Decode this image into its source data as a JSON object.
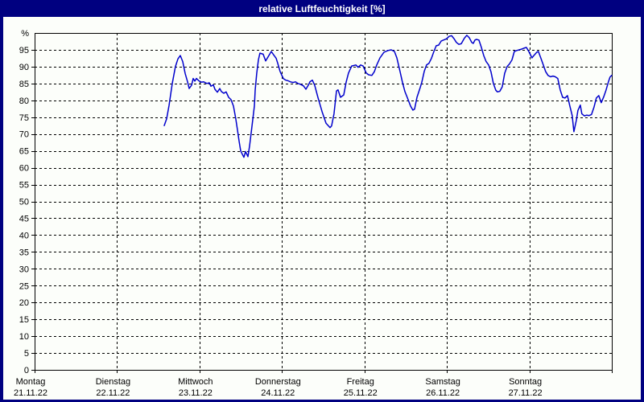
{
  "window": {
    "title": "relative Luftfeuchtigkeit [%]"
  },
  "colors": {
    "frame": "#000080",
    "titlebar_bg": "#000080",
    "title_text": "#ffffff",
    "panel_bg": "#fcfefa",
    "plot_border": "#000000",
    "grid": "#000000",
    "axis_text": "#000000",
    "line": "#0000cc"
  },
  "chart_data": {
    "type": "line",
    "title": "relative Luftfeuchtigkeit [%]",
    "ylabel": "%",
    "ytop_label": "%",
    "ylim": [
      0,
      100
    ],
    "yticks": [
      0,
      5,
      10,
      15,
      20,
      25,
      30,
      35,
      40,
      45,
      50,
      55,
      60,
      65,
      70,
      75,
      80,
      85,
      90,
      95
    ],
    "grid": "dashed, horizontal every 5 units, vertical every day",
    "legend_position": "none",
    "x_axis": {
      "unit": "days_since_monday_00h",
      "range": [
        0,
        7
      ],
      "days": [
        {
          "name": "Montag",
          "date": "21.11.22"
        },
        {
          "name": "Dienstag",
          "date": "22.11.22"
        },
        {
          "name": "Mittwoch",
          "date": "23.11.22"
        },
        {
          "name": "Donnerstag",
          "date": "24.11.22"
        },
        {
          "name": "Freitag",
          "date": "25.11.22"
        },
        {
          "name": "Samstag",
          "date": "26.11.22"
        },
        {
          "name": "Sonntag",
          "date": "27.11.22"
        }
      ]
    },
    "series": [
      {
        "name": "relative Luftfeuchtigkeit",
        "color": "#0000cc",
        "points": [
          [
            1.572,
            72.5
          ],
          [
            1.601,
            74.5
          ],
          [
            1.63,
            78.5
          ],
          [
            1.669,
            85.0
          ],
          [
            1.708,
            90.0
          ],
          [
            1.738,
            92.3
          ],
          [
            1.767,
            93.3
          ],
          [
            1.796,
            91.5
          ],
          [
            1.826,
            88.0
          ],
          [
            1.855,
            85.5
          ],
          [
            1.874,
            83.5
          ],
          [
            1.904,
            84.5
          ],
          [
            1.923,
            86.5
          ],
          [
            1.943,
            85.7
          ],
          [
            1.962,
            86.5
          ],
          [
            1.992,
            85.8
          ],
          [
            2.021,
            85.4
          ],
          [
            2.05,
            85.5
          ],
          [
            2.089,
            85.0
          ],
          [
            2.119,
            85.2
          ],
          [
            2.138,
            84.2
          ],
          [
            2.167,
            84.6
          ],
          [
            2.187,
            83.3
          ],
          [
            2.216,
            82.4
          ],
          [
            2.245,
            83.5
          ],
          [
            2.265,
            82.6
          ],
          [
            2.294,
            82.1
          ],
          [
            2.323,
            82.5
          ],
          [
            2.353,
            80.9
          ],
          [
            2.382,
            80.2
          ],
          [
            2.411,
            78.3
          ],
          [
            2.44,
            74.5
          ],
          [
            2.46,
            71.2
          ],
          [
            2.48,
            67.9
          ],
          [
            2.499,
            65.0
          ],
          [
            2.519,
            64.0
          ],
          [
            2.538,
            63.1
          ],
          [
            2.558,
            64.8
          ],
          [
            2.577,
            63.8
          ],
          [
            2.587,
            63.3
          ],
          [
            2.607,
            66.4
          ],
          [
            2.626,
            70.3
          ],
          [
            2.646,
            74.3
          ],
          [
            2.665,
            78.3
          ],
          [
            2.675,
            83.0
          ],
          [
            2.694,
            88.0
          ],
          [
            2.714,
            92.0
          ],
          [
            2.733,
            94.0
          ],
          [
            2.772,
            93.7
          ],
          [
            2.802,
            91.7
          ],
          [
            2.831,
            92.9
          ],
          [
            2.87,
            94.5
          ],
          [
            2.899,
            93.5
          ],
          [
            2.929,
            92.5
          ],
          [
            2.948,
            91.0
          ],
          [
            2.977,
            88.6
          ],
          [
            3.016,
            86.5
          ],
          [
            3.046,
            86.0
          ],
          [
            3.075,
            85.8
          ],
          [
            3.104,
            85.5
          ],
          [
            3.134,
            85.3
          ],
          [
            3.163,
            85.5
          ],
          [
            3.192,
            85.0
          ],
          [
            3.221,
            84.8
          ],
          [
            3.261,
            84.3
          ],
          [
            3.29,
            83.3
          ],
          [
            3.319,
            84.5
          ],
          [
            3.339,
            85.5
          ],
          [
            3.368,
            86.0
          ],
          [
            3.397,
            84.5
          ],
          [
            3.436,
            80.9
          ],
          [
            3.485,
            76.7
          ],
          [
            3.534,
            73.2
          ],
          [
            3.583,
            71.9
          ],
          [
            3.602,
            72.4
          ],
          [
            3.631,
            76.0
          ],
          [
            3.661,
            82.8
          ],
          [
            3.68,
            83.1
          ],
          [
            3.71,
            80.9
          ],
          [
            3.749,
            81.6
          ],
          [
            3.778,
            85.4
          ],
          [
            3.807,
            88.1
          ],
          [
            3.846,
            90.2
          ],
          [
            3.895,
            90.5
          ],
          [
            3.924,
            89.8
          ],
          [
            3.954,
            90.5
          ],
          [
            3.983,
            90.2
          ],
          [
            4.022,
            88.1
          ],
          [
            4.051,
            87.6
          ],
          [
            4.09,
            87.4
          ],
          [
            4.12,
            88.5
          ],
          [
            4.149,
            90.5
          ],
          [
            4.188,
            92.6
          ],
          [
            4.237,
            94.3
          ],
          [
            4.286,
            94.8
          ],
          [
            4.325,
            95.0
          ],
          [
            4.364,
            94.5
          ],
          [
            4.393,
            92.6
          ],
          [
            4.432,
            88.5
          ],
          [
            4.461,
            85.4
          ],
          [
            4.491,
            82.6
          ],
          [
            4.53,
            80.2
          ],
          [
            4.559,
            78.3
          ],
          [
            4.588,
            77.1
          ],
          [
            4.608,
            77.4
          ],
          [
            4.637,
            80.9
          ],
          [
            4.676,
            83.8
          ],
          [
            4.696,
            85.4
          ],
          [
            4.725,
            88.6
          ],
          [
            4.754,
            90.5
          ],
          [
            4.783,
            91.0
          ],
          [
            4.813,
            92.5
          ],
          [
            4.842,
            94.5
          ],
          [
            4.871,
            96.2
          ],
          [
            4.9,
            96.4
          ],
          [
            4.93,
            97.6
          ],
          [
            4.959,
            97.9
          ],
          [
            4.979,
            98.1
          ],
          [
            4.998,
            98.3
          ],
          [
            5.027,
            99.0
          ],
          [
            5.057,
            99.2
          ],
          [
            5.086,
            98.3
          ],
          [
            5.115,
            97.2
          ],
          [
            5.145,
            96.6
          ],
          [
            5.174,
            96.8
          ],
          [
            5.213,
            98.5
          ],
          [
            5.242,
            99.3
          ],
          [
            5.271,
            98.6
          ],
          [
            5.301,
            97.2
          ],
          [
            5.32,
            96.9
          ],
          [
            5.34,
            97.9
          ],
          [
            5.359,
            98.1
          ],
          [
            5.388,
            97.9
          ],
          [
            5.418,
            95.7
          ],
          [
            5.447,
            93.3
          ],
          [
            5.476,
            91.5
          ],
          [
            5.506,
            90.5
          ],
          [
            5.535,
            88.5
          ],
          [
            5.564,
            85.0
          ],
          [
            5.593,
            83.0
          ],
          [
            5.613,
            82.5
          ],
          [
            5.642,
            82.7
          ],
          [
            5.671,
            84.0
          ],
          [
            5.701,
            88.0
          ],
          [
            5.73,
            90.0
          ],
          [
            5.759,
            90.8
          ],
          [
            5.789,
            92.0
          ],
          [
            5.818,
            94.5
          ],
          [
            5.847,
            94.8
          ],
          [
            5.876,
            95.0
          ],
          [
            5.906,
            95.2
          ],
          [
            5.935,
            95.5
          ],
          [
            5.964,
            95.7
          ],
          [
            5.993,
            94.5
          ],
          [
            6.032,
            92.6
          ],
          [
            6.062,
            93.5
          ],
          [
            6.091,
            94.3
          ],
          [
            6.11,
            94.5
          ],
          [
            6.14,
            92.5
          ],
          [
            6.169,
            90.5
          ],
          [
            6.198,
            88.5
          ],
          [
            6.227,
            87.4
          ],
          [
            6.257,
            87.0
          ],
          [
            6.286,
            87.2
          ],
          [
            6.315,
            87.0
          ],
          [
            6.345,
            86.5
          ],
          [
            6.374,
            83.1
          ],
          [
            6.403,
            80.9
          ],
          [
            6.432,
            80.7
          ],
          [
            6.462,
            81.4
          ],
          [
            6.491,
            78.3
          ],
          [
            6.52,
            75.5
          ],
          [
            6.54,
            70.7
          ],
          [
            6.569,
            74.0
          ],
          [
            6.589,
            77.0
          ],
          [
            6.618,
            78.6
          ],
          [
            6.637,
            76.0
          ],
          [
            6.667,
            75.4
          ],
          [
            6.696,
            75.6
          ],
          [
            6.725,
            75.5
          ],
          [
            6.754,
            75.8
          ],
          [
            6.784,
            78.0
          ],
          [
            6.813,
            80.7
          ],
          [
            6.842,
            81.4
          ],
          [
            6.872,
            79.3
          ],
          [
            6.901,
            81.0
          ],
          [
            6.93,
            83.0
          ],
          [
            6.959,
            85.5
          ],
          [
            6.979,
            86.9
          ],
          [
            6.998,
            87.4
          ]
        ]
      }
    ]
  }
}
